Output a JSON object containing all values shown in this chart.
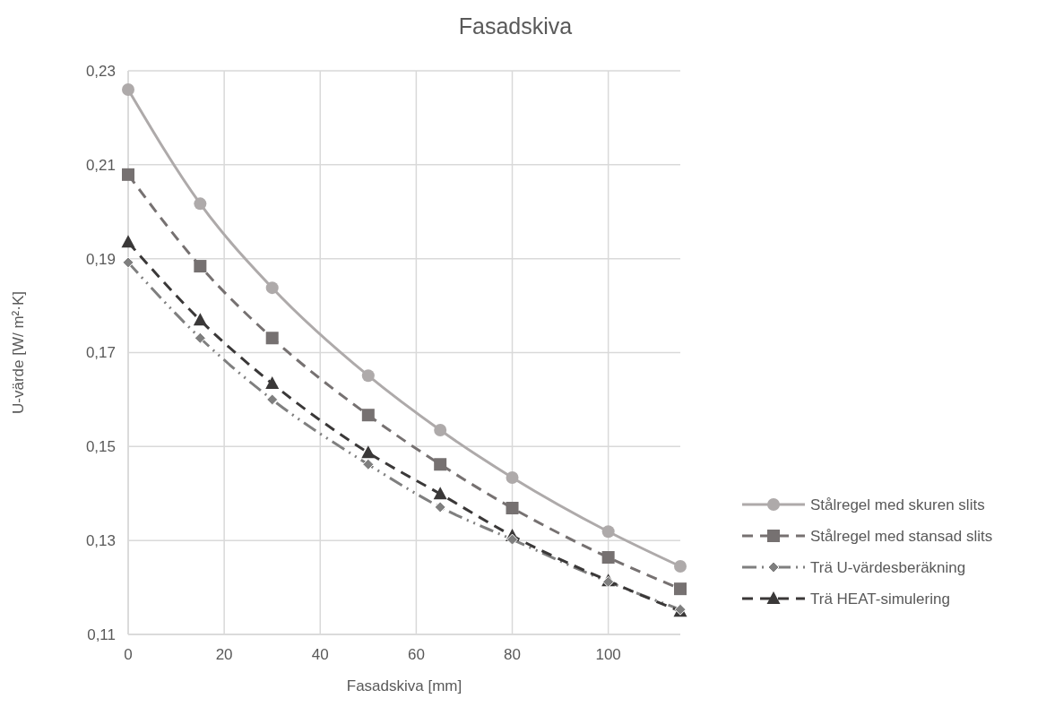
{
  "chart_data": {
    "type": "line",
    "title": "Fasadskiva",
    "xlabel": "Fasadskiva [mm]",
    "ylabel": "U-värde [W/ m²·K]",
    "x": [
      0,
      15,
      30,
      50,
      65,
      80,
      100,
      115
    ],
    "series": [
      {
        "name": "Stålregel med skuren slits",
        "color": "#aeaaaa",
        "marker": "circle",
        "line_style": "solid",
        "values": [
          0.226,
          0.2017,
          0.1838,
          0.1651,
          0.1535,
          0.1434,
          0.1319,
          0.1245
        ]
      },
      {
        "name": "Stålregel med stansad slits",
        "color": "#767171",
        "marker": "square",
        "line_style": "dashed",
        "values": [
          0.2079,
          0.1884,
          0.1731,
          0.1567,
          0.1462,
          0.1369,
          0.1264,
          0.1197
        ]
      },
      {
        "name": "Trä U-värdesberäkning",
        "color": "#7f7f7f",
        "marker": "diamond",
        "line_style": "dotted",
        "values": [
          0.1892,
          0.1731,
          0.16,
          0.1462,
          0.1371,
          0.1302,
          0.1212,
          0.1153
        ]
      },
      {
        "name": "Trä HEAT-simulering",
        "color": "#3a3838",
        "marker": "triangle",
        "line_style": "dashed",
        "values": [
          0.1935,
          0.1769,
          0.1634,
          0.1487,
          0.1399,
          0.131,
          0.1214,
          0.1149
        ]
      }
    ],
    "xlim": [
      0,
      115
    ],
    "xticks": [
      0,
      20,
      40,
      60,
      80,
      100
    ],
    "ylim": [
      0.11,
      0.23
    ],
    "yticks": [
      {
        "value": 0.11,
        "label": "0,11"
      },
      {
        "value": 0.13,
        "label": "0,13"
      },
      {
        "value": 0.15,
        "label": "0,15"
      },
      {
        "value": 0.17,
        "label": "0,17"
      },
      {
        "value": 0.19,
        "label": "0,19"
      },
      {
        "value": 0.21,
        "label": "0,21"
      },
      {
        "value": 0.23,
        "label": "0,23"
      }
    ],
    "grid": true,
    "legend": "right"
  }
}
